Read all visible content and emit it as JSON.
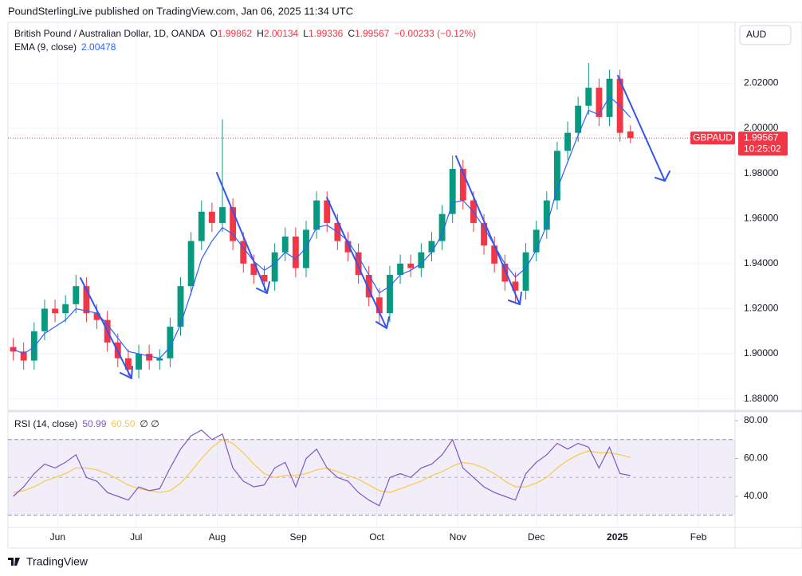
{
  "header": {
    "publisher": "PoundSterlingLive published on TradingView.com, Jan 06, 2025 11:34 UTC",
    "currency": "AUD",
    "footer": "TradingView"
  },
  "chart_data": {
    "type": "candlestick",
    "title": "British Pound / Australian Dollar, 1D, OANDA",
    "ohlc_labels": [
      "O",
      "H",
      "L",
      "C"
    ],
    "change": "−0.00233 (−0.12%)",
    "symbol": "GBPAUD",
    "countdown": "10:25:02",
    "x": [
      0,
      4,
      8,
      12,
      16,
      20,
      24,
      28,
      32,
      36,
      40,
      44,
      48,
      52,
      56,
      60,
      64,
      68,
      72,
      76,
      80,
      84,
      88,
      92,
      96,
      100,
      104,
      108,
      112,
      116,
      120,
      124,
      128,
      132,
      136,
      140,
      144,
      148,
      152,
      156,
      160,
      164,
      168,
      172,
      176,
      180,
      184,
      188,
      192,
      196,
      200,
      204,
      208,
      212,
      216,
      220,
      224,
      228,
      232,
      236
    ],
    "open": [
      1.903,
      1.901,
      1.897,
      1.91,
      1.92,
      1.918,
      1.922,
      1.93,
      1.918,
      1.915,
      1.905,
      1.898,
      1.893,
      1.9,
      1.897,
      1.898,
      1.912,
      1.93,
      1.95,
      1.963,
      1.958,
      1.965,
      1.95,
      1.94,
      1.935,
      1.932,
      1.945,
      1.952,
      1.938,
      1.955,
      1.968,
      1.958,
      1.95,
      1.945,
      1.935,
      1.925,
      1.918,
      1.935,
      1.94,
      1.938,
      1.945,
      1.95,
      1.962,
      1.982,
      1.968,
      1.958,
      1.948,
      1.94,
      1.932,
      1.928,
      1.945,
      1.955,
      1.968,
      1.99,
      1.998,
      2.01,
      2.018,
      2.005,
      2.022,
      1.99862
    ],
    "high": [
      1.907,
      1.905,
      1.914,
      1.924,
      1.924,
      1.926,
      1.935,
      1.934,
      1.922,
      1.919,
      1.909,
      1.902,
      1.904,
      1.904,
      1.902,
      1.916,
      1.934,
      1.954,
      1.968,
      1.967,
      2.004,
      1.969,
      1.954,
      1.944,
      1.939,
      1.949,
      1.956,
      1.956,
      1.959,
      1.972,
      1.972,
      1.962,
      1.954,
      1.949,
      1.939,
      1.929,
      1.939,
      1.944,
      1.944,
      1.949,
      1.954,
      1.966,
      1.988,
      1.986,
      1.972,
      1.962,
      1.952,
      1.944,
      1.936,
      1.949,
      1.959,
      1.972,
      1.994,
      2.003,
      2.014,
      2.029,
      2.022,
      2.026,
      2.026,
      2.00134
    ],
    "low": [
      1.897,
      1.893,
      1.893,
      1.906,
      1.914,
      1.914,
      1.918,
      1.914,
      1.911,
      1.901,
      1.894,
      1.89,
      1.889,
      1.893,
      1.893,
      1.894,
      1.908,
      1.926,
      1.946,
      1.954,
      1.954,
      1.946,
      1.936,
      1.931,
      1.928,
      1.928,
      1.941,
      1.934,
      1.934,
      1.951,
      1.954,
      1.946,
      1.941,
      1.931,
      1.921,
      1.913,
      1.914,
      1.931,
      1.934,
      1.934,
      1.941,
      1.946,
      1.958,
      1.964,
      1.954,
      1.944,
      1.936,
      1.928,
      1.923,
      1.924,
      1.941,
      1.951,
      1.964,
      1.986,
      1.994,
      2.006,
      2.001,
      2.001,
      1.994,
      1.99336
    ],
    "close": [
      1.901,
      1.897,
      1.91,
      1.92,
      1.918,
      1.922,
      1.93,
      1.918,
      1.915,
      1.905,
      1.898,
      1.893,
      1.9,
      1.897,
      1.898,
      1.912,
      1.93,
      1.95,
      1.963,
      1.958,
      1.965,
      1.95,
      1.94,
      1.935,
      1.932,
      1.945,
      1.952,
      1.938,
      1.955,
      1.968,
      1.958,
      1.95,
      1.945,
      1.935,
      1.925,
      1.918,
      1.935,
      1.94,
      1.938,
      1.945,
      1.95,
      1.962,
      1.982,
      1.968,
      1.958,
      1.948,
      1.94,
      1.932,
      1.928,
      1.945,
      1.955,
      1.968,
      1.99,
      1.998,
      2.01,
      2.018,
      2.005,
      2.022,
      1.998,
      1.99567
    ],
    "up_color": "#089981",
    "down_color": "#f23645",
    "ema": {
      "name": "EMA (9, close)",
      "color": "#2962ff",
      "values": [
        1.902,
        1.9,
        1.903,
        1.909,
        1.912,
        1.915,
        1.92,
        1.919,
        1.918,
        1.913,
        1.907,
        1.901,
        1.9,
        1.899,
        1.898,
        1.903,
        1.913,
        1.927,
        1.942,
        1.95,
        1.956,
        1.953,
        1.947,
        1.941,
        1.937,
        1.94,
        1.945,
        1.942,
        1.947,
        1.956,
        1.957,
        1.954,
        1.95,
        1.943,
        1.935,
        1.927,
        1.93,
        1.935,
        1.937,
        1.94,
        1.945,
        1.953,
        1.967,
        1.968,
        1.963,
        1.956,
        1.948,
        1.94,
        1.934,
        1.938,
        1.946,
        1.957,
        1.973,
        1.985,
        1.997,
        2.008,
        2.006,
        2.014,
        2.01,
        2.00478
      ]
    },
    "xlim": [
      -2,
      276
    ],
    "xticks": [
      {
        "value": 17,
        "label": "Jun"
      },
      {
        "value": 47,
        "label": "Jul"
      },
      {
        "value": 78,
        "label": "Aug"
      },
      {
        "value": 109,
        "label": "Sep"
      },
      {
        "value": 139,
        "label": "Oct"
      },
      {
        "value": 170,
        "label": "Nov"
      },
      {
        "value": 200,
        "label": "Dec"
      },
      {
        "value": 231,
        "label": "2025"
      },
      {
        "value": 262,
        "label": "Feb"
      }
    ],
    "ylim": [
      1.876,
      2.047
    ],
    "yticks": [
      {
        "value": 1.88,
        "label": "1.88000"
      },
      {
        "value": 1.9,
        "label": "1.90000"
      },
      {
        "value": 1.92,
        "label": "1.92000"
      },
      {
        "value": 1.94,
        "label": "1.94000"
      },
      {
        "value": 1.96,
        "label": "1.96000"
      },
      {
        "value": 1.98,
        "label": "1.98000"
      },
      {
        "value": 2.0,
        "label": "2.00000"
      },
      {
        "value": 2.02,
        "label": "2.02000"
      }
    ],
    "grid": true,
    "rsi": {
      "title": "RSI (14, close)",
      "color": "#7e57c2",
      "ma_color": "#f7c948",
      "ma_label": "60.50",
      "extra": "∅ ∅",
      "values": [
        40,
        45,
        52,
        57,
        55,
        58,
        62,
        50,
        48,
        42,
        40,
        38,
        45,
        43,
        44,
        55,
        65,
        72,
        75,
        70,
        73,
        55,
        48,
        45,
        46,
        55,
        58,
        45,
        60,
        65,
        55,
        50,
        48,
        42,
        38,
        35,
        50,
        52,
        50,
        55,
        57,
        62,
        70,
        55,
        50,
        45,
        42,
        40,
        38,
        52,
        58,
        62,
        68,
        65,
        68,
        66,
        55,
        66,
        52,
        50.99
      ],
      "ma_values": [
        42,
        43,
        45,
        48,
        50,
        52,
        55,
        55,
        54,
        52,
        49,
        46,
        44,
        43,
        42,
        43,
        47,
        53,
        60,
        66,
        70,
        68,
        63,
        57,
        52,
        50,
        51,
        51,
        52,
        54,
        55,
        53,
        51,
        49,
        46,
        43,
        42,
        44,
        46,
        48,
        51,
        53,
        56,
        58,
        57,
        55,
        52,
        48,
        45,
        45,
        47,
        50,
        55,
        59,
        62,
        64,
        63,
        63,
        62,
        60.5
      ],
      "ylim": [
        24.4,
        83.4
      ],
      "yticks": [
        {
          "value": 40,
          "label": "40.00"
        },
        {
          "value": 60,
          "label": "60.00"
        },
        {
          "value": 80,
          "label": "80.00"
        }
      ],
      "levels": [
        30,
        50,
        70
      ]
    }
  }
}
